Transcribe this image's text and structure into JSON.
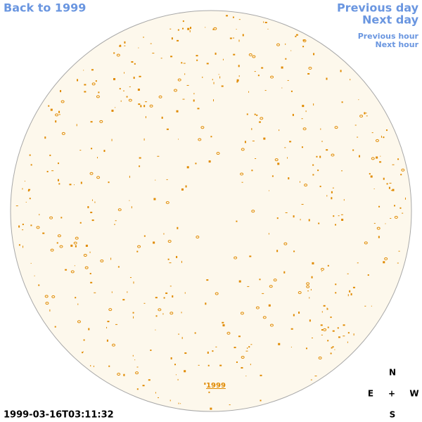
{
  "navigation": {
    "back": "Back to 1999",
    "previous_day": "Previous day",
    "next_day": "Next day",
    "previous_hour": "Previous hour",
    "next_hour": "Next hour"
  },
  "image": {
    "year_link": "1999",
    "timestamp": "1999-03-16T03:11:32"
  },
  "compass": {
    "north": "N",
    "east": "E",
    "center": "+",
    "west": "W",
    "south": "S"
  }
}
